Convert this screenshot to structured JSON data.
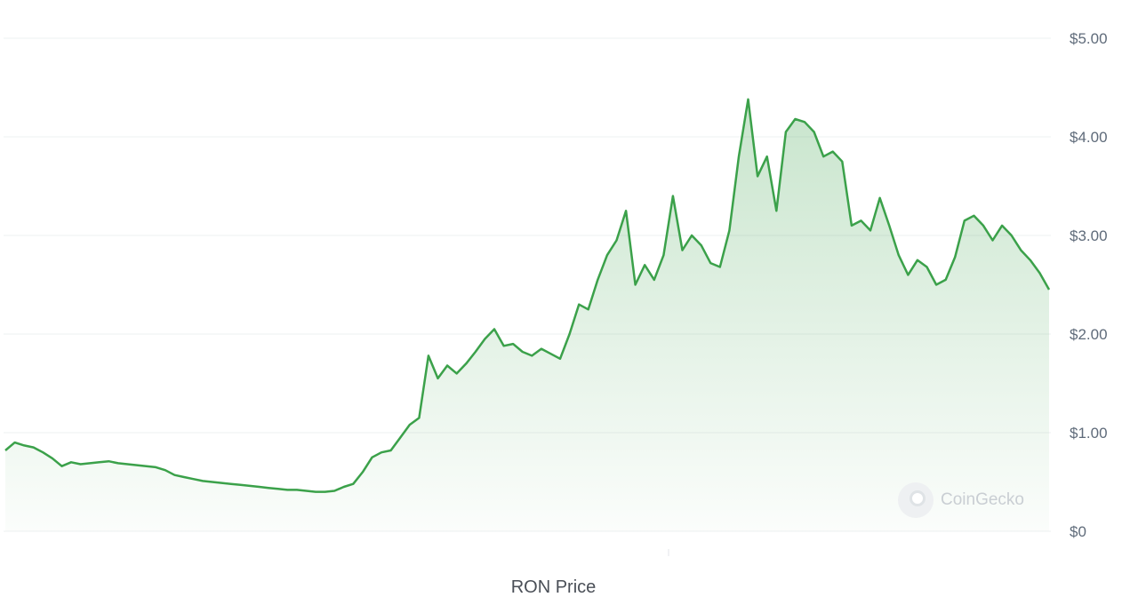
{
  "chart_data": {
    "type": "area",
    "series": [
      {
        "name": "RON Price",
        "color": "#3ba14a",
        "values": [
          0.82,
          0.9,
          0.87,
          0.85,
          0.8,
          0.74,
          0.66,
          0.7,
          0.68,
          0.69,
          0.7,
          0.71,
          0.69,
          0.68,
          0.67,
          0.66,
          0.65,
          0.62,
          0.57,
          0.55,
          0.53,
          0.51,
          0.5,
          0.49,
          0.48,
          0.47,
          0.46,
          0.45,
          0.44,
          0.43,
          0.42,
          0.42,
          0.41,
          0.4,
          0.4,
          0.41,
          0.45,
          0.48,
          0.6,
          0.75,
          0.8,
          0.82,
          0.95,
          1.08,
          1.15,
          1.78,
          1.55,
          1.68,
          1.6,
          1.7,
          1.82,
          1.95,
          2.05,
          1.88,
          1.9,
          1.82,
          1.78,
          1.85,
          1.8,
          1.75,
          2.0,
          2.3,
          2.25,
          2.55,
          2.8,
          2.95,
          3.25,
          2.5,
          2.7,
          2.55,
          2.8,
          3.4,
          2.85,
          3.0,
          2.9,
          2.72,
          2.68,
          3.05,
          3.8,
          4.38,
          3.6,
          3.8,
          3.25,
          4.05,
          4.18,
          4.15,
          4.05,
          3.8,
          3.85,
          3.75,
          3.1,
          3.15,
          3.05,
          3.38,
          3.1,
          2.8,
          2.6,
          2.75,
          2.68,
          2.5,
          2.55,
          2.78,
          3.15,
          3.2,
          3.1,
          2.95,
          3.1,
          3.0,
          2.85,
          2.75,
          2.62,
          2.45
        ]
      }
    ],
    "y_ticks": [
      "$0",
      "$1.00",
      "$2.00",
      "$3.00",
      "$4.00",
      "$5.00"
    ],
    "ylim": [
      0,
      5
    ],
    "grid": true,
    "legend": "bottom-center",
    "watermark": "CoinGecko"
  }
}
